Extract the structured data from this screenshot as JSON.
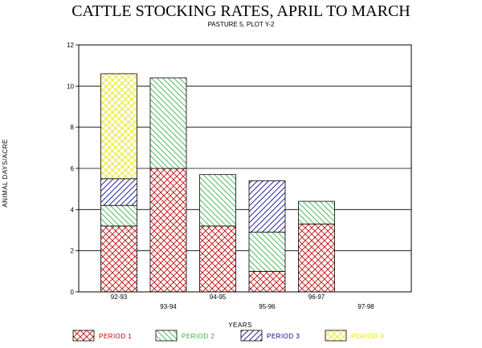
{
  "chart_data": {
    "type": "bar",
    "stacked": true,
    "title": "CATTLE STOCKING RATES, APRIL TO MARCH",
    "subtitle": "PASTURE 5, PLOT Y-2",
    "xlabel": "YEARS",
    "ylabel": "ANIMAL DAYS/ACRE",
    "ylim": [
      0,
      12
    ],
    "yticks": [
      0,
      2,
      4,
      6,
      8,
      10,
      12
    ],
    "grid": true,
    "legend_position": "bottom",
    "categories": [
      "92-93",
      "93-94",
      "94-95",
      "95-96",
      "96-97",
      "97-98"
    ],
    "series": [
      {
        "name": "PERIOD 1",
        "values": [
          3.2,
          6.0,
          3.2,
          1.0,
          3.3,
          0
        ],
        "color": "#c00000",
        "pattern": "crosshatch"
      },
      {
        "name": "PERIOD 2",
        "values": [
          1.0,
          4.4,
          2.5,
          1.9,
          1.1,
          0
        ],
        "color": "#30b040",
        "pattern": "diagonal-back"
      },
      {
        "name": "PERIOD 3",
        "values": [
          1.3,
          0,
          0,
          2.5,
          0,
          0
        ],
        "color": "#00008b",
        "pattern": "diagonal-forward"
      },
      {
        "name": "PERIOD 4",
        "values": [
          5.1,
          0,
          0,
          0,
          0,
          0
        ],
        "color": "#e6e600",
        "pattern": "crosshatch"
      }
    ]
  }
}
